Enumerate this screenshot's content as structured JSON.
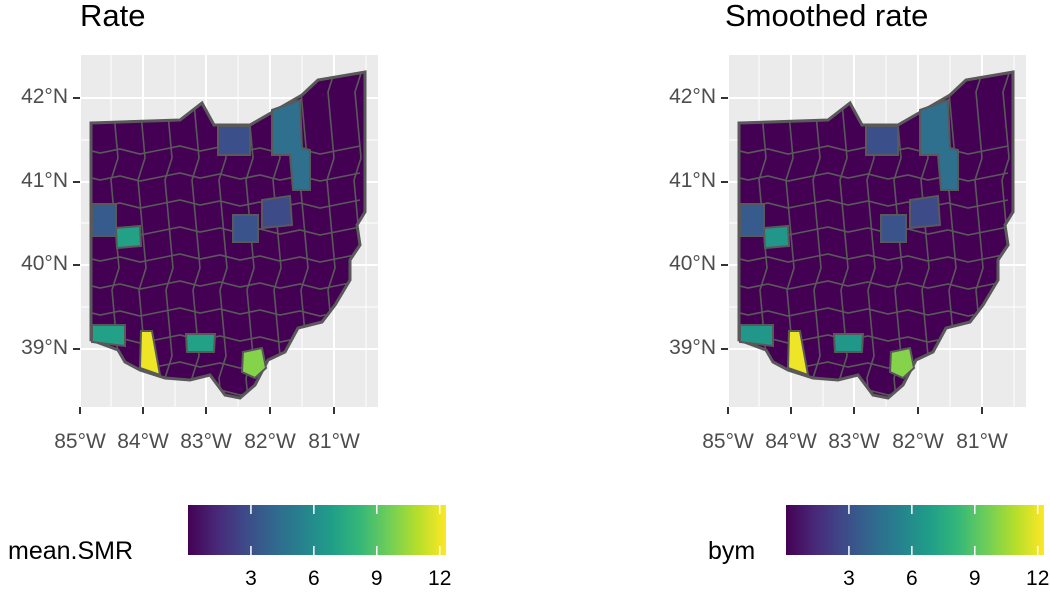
{
  "panels": [
    {
      "id": "rate",
      "title": "Rate",
      "legend_title": "mean.SMR"
    },
    {
      "id": "smoothed",
      "title": "Smoothed rate",
      "legend_title": "bym"
    }
  ],
  "axes": {
    "y_ticks": [
      "42°N",
      "41°N",
      "40°N",
      "39°N"
    ],
    "y_values": [
      42,
      41,
      40,
      39
    ],
    "x_ticks": [
      "85°W",
      "84°W",
      "83°W",
      "82°W",
      "81°W"
    ],
    "x_values": [
      -85,
      -84,
      -83,
      -82,
      -81
    ]
  },
  "legend": {
    "ticks": [
      "3",
      "6",
      "9",
      "12"
    ],
    "tick_values": [
      3,
      6,
      9,
      12
    ],
    "range": [
      0,
      12.3
    ],
    "palette": [
      "#440154",
      "#482878",
      "#3e4a89",
      "#31688e",
      "#26828e",
      "#1f9e89",
      "#35b779",
      "#6ece58",
      "#b5de2b",
      "#fde725"
    ]
  },
  "chart_data": {
    "type": "choropleth",
    "region": "Ohio counties",
    "fill_palette": "viridis",
    "highlights": [
      {
        "area": "south-west border county",
        "rate": 12.0,
        "bym": 12.0
      },
      {
        "area": "southern Ohio river county",
        "rate": 10.0,
        "bym": 10.0
      },
      {
        "area": "south-west corner",
        "rate": 7.0,
        "bym": 6.5
      },
      {
        "area": "west-central county",
        "rate": 7.0,
        "bym": 6.5
      },
      {
        "area": "south-central county",
        "rate": 7.0,
        "bym": 6.5
      },
      {
        "area": "north-east corridor",
        "rate": 4.5,
        "bym": 4.5
      }
    ]
  },
  "colors": {
    "panel_bg": "#ebebeb",
    "grid": "#ffffff",
    "border": "#595959",
    "base_fill": "#440154"
  }
}
